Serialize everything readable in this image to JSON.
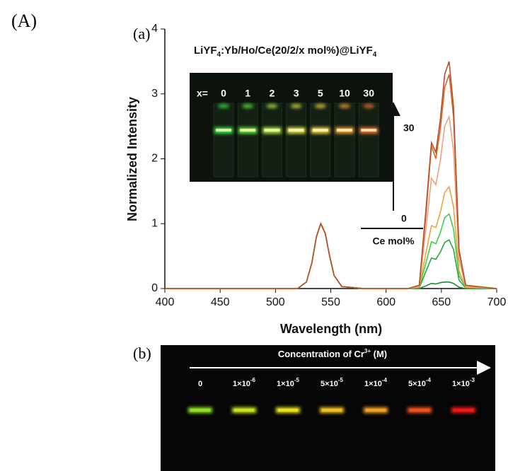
{
  "panel_label": "(A)",
  "chart_data": {
    "type": "line",
    "label": "(a)",
    "title": [
      "LiYF",
      "4",
      ":Yb/Ho/Ce(20/2/x mol%)@LiYF",
      "4"
    ],
    "x_label": "Wavelength (nm)",
    "y_label": "Normalized Intensity",
    "xlim": [
      400,
      700
    ],
    "ylim": [
      0,
      4
    ],
    "xticks": [
      400,
      450,
      500,
      550,
      600,
      650,
      700
    ],
    "yticks": [
      0,
      1,
      2,
      3,
      4
    ],
    "x": [
      400,
      500,
      520,
      528,
      533,
      537,
      541,
      545,
      549,
      553,
      560,
      580,
      620,
      630,
      636,
      641,
      645,
      649,
      653,
      657,
      661,
      666,
      672,
      700
    ],
    "series": [
      {
        "color": "#1a8f2a",
        "values": [
          0,
          0,
          0,
          0.1,
          0.4,
          0.8,
          1.0,
          0.85,
          0.5,
          0.2,
          0.03,
          0,
          0,
          0,
          0.04,
          0.08,
          0.07,
          0.09,
          0.1,
          0.1,
          0.08,
          0.02,
          0,
          0
        ]
      },
      {
        "color": "#2aa83a",
        "values": [
          0,
          0,
          0,
          0.1,
          0.4,
          0.8,
          1.0,
          0.85,
          0.5,
          0.2,
          0.03,
          0,
          0,
          0.01,
          0.26,
          0.47,
          0.45,
          0.56,
          0.71,
          0.75,
          0.6,
          0.13,
          0.01,
          0
        ]
      },
      {
        "color": "#3ccf4a",
        "values": [
          0,
          0,
          0,
          0.1,
          0.4,
          0.8,
          1.0,
          0.85,
          0.5,
          0.2,
          0.03,
          0,
          0,
          0.02,
          0.39,
          0.72,
          0.69,
          0.86,
          1.09,
          1.15,
          0.92,
          0.2,
          0.02,
          0
        ]
      },
      {
        "color": "#e8a540",
        "values": [
          0,
          0,
          0,
          0.1,
          0.4,
          0.8,
          1.0,
          0.85,
          0.5,
          0.2,
          0.03,
          0,
          0,
          0.02,
          0.54,
          0.97,
          0.94,
          1.17,
          1.48,
          1.57,
          1.26,
          0.27,
          0.02,
          0
        ]
      },
      {
        "color": "#f0a080",
        "values": [
          0,
          0,
          0,
          0.1,
          0.4,
          0.8,
          1.0,
          0.85,
          0.5,
          0.2,
          0.03,
          0,
          0,
          0.04,
          0.91,
          1.7,
          1.6,
          1.97,
          2.5,
          2.65,
          2.12,
          0.45,
          0.04,
          0
        ]
      },
      {
        "color": "#d9652a",
        "values": [
          0,
          0,
          0,
          0.1,
          0.4,
          0.8,
          1.0,
          0.85,
          0.5,
          0.2,
          0.03,
          0,
          0,
          0.05,
          1.13,
          2.2,
          2.0,
          2.45,
          3.1,
          3.3,
          2.64,
          0.57,
          0.05,
          0
        ]
      },
      {
        "color": "#b5502a",
        "values": [
          0,
          0,
          0,
          0.1,
          0.4,
          0.8,
          1.0,
          0.85,
          0.5,
          0.2,
          0.03,
          0,
          0,
          0.05,
          1.2,
          2.25,
          2.1,
          2.6,
          3.3,
          3.5,
          2.8,
          0.6,
          0.05,
          0
        ]
      }
    ],
    "arrow_top": "30",
    "arrow_bottom": "0",
    "arrow_label": "Ce mol%",
    "inset": {
      "prefix": "x=",
      "labels": [
        "0",
        "1",
        "2",
        "3",
        "5",
        "10",
        "30"
      ],
      "colors": [
        "#39e04a",
        "#5fe83a",
        "#a8e83a",
        "#d8e04a",
        "#f0d040",
        "#f0a030",
        "#f07030"
      ]
    }
  },
  "panel_b": {
    "label": "(b)",
    "title": [
      "Concentration of Cr",
      "3+",
      " (M)"
    ],
    "labels": [
      [
        "0",
        ""
      ],
      [
        "1×10",
        "-6"
      ],
      [
        "1×10",
        "-5"
      ],
      [
        "5×10",
        "-5"
      ],
      [
        "1×10",
        "-4"
      ],
      [
        "5×10",
        "-4"
      ],
      [
        "1×10",
        "-3"
      ]
    ],
    "colors": [
      "#8fe020",
      "#c8e020",
      "#e8e020",
      "#f0c020",
      "#f0a020",
      "#f05020",
      "#f01818"
    ]
  }
}
